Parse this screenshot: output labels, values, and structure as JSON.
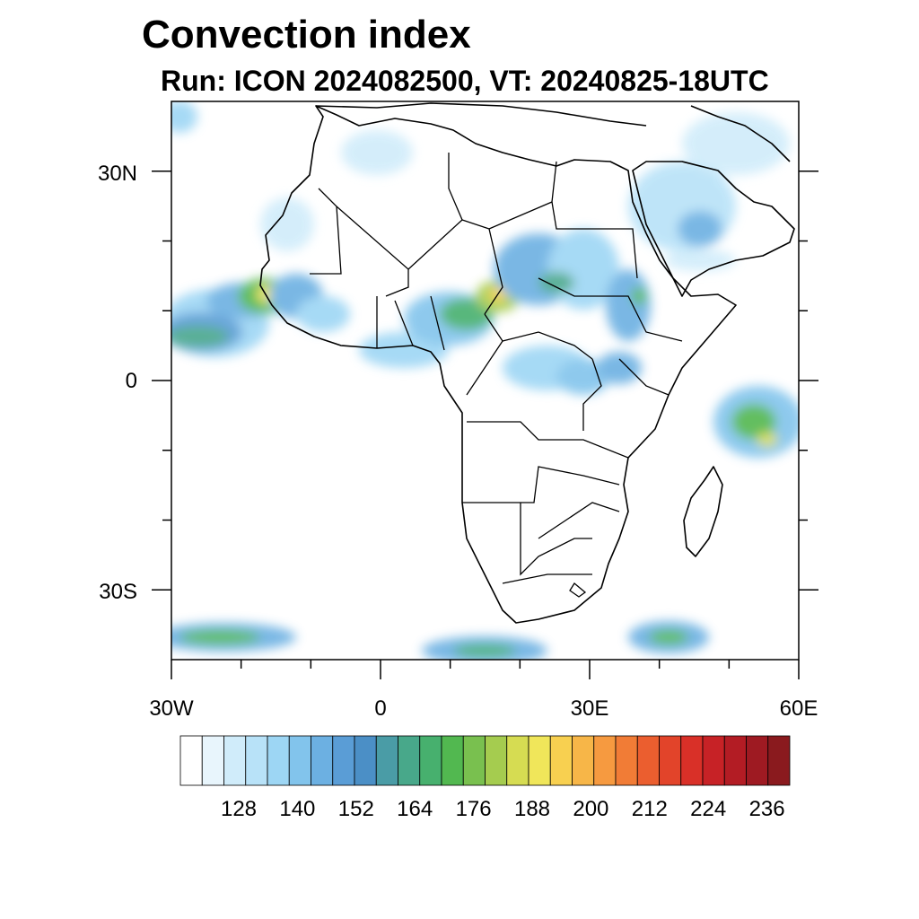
{
  "map": {
    "title": "Convection index",
    "subtitle": "Run: ICON 2024082500,  VT: 20240825-18UTC",
    "lat_labels": [
      "30N",
      "0",
      "30S"
    ],
    "lon_labels": [
      "30W",
      "0",
      "30E",
      "60E"
    ],
    "extent": {
      "lon": [
        -30,
        60
      ],
      "lat": [
        -40,
        40
      ]
    },
    "colorbar": {
      "tick_labels": [
        "128",
        "140",
        "152",
        "164",
        "176",
        "188",
        "200",
        "212",
        "224",
        "236"
      ],
      "colors": [
        "#ffffff",
        "#e8f5fc",
        "#d0ecfa",
        "#b8e2f8",
        "#9dd6f4",
        "#82c4ec",
        "#6cb0e2",
        "#5a9dd6",
        "#4b8fc6",
        "#4a9ca6",
        "#48a88a",
        "#47b06e",
        "#52b850",
        "#79c04f",
        "#a5cc4f",
        "#d6dc52",
        "#f0e65a",
        "#f8d050",
        "#f7b648",
        "#f69a40",
        "#f17c36",
        "#eb5e2f",
        "#e2442a",
        "#d93028",
        "#c72226",
        "#b31c24",
        "#9e1a22",
        "#8a1a1e"
      ]
    }
  }
}
